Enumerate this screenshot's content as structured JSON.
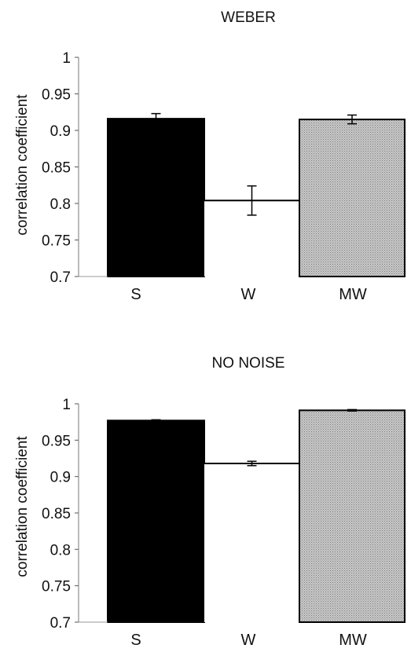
{
  "chart_data": [
    {
      "type": "bar",
      "title": "WEBER",
      "ylabel": "correlation coefficient",
      "xlabel": "",
      "categories": [
        "S",
        "W",
        "MW"
      ],
      "values": [
        0.916,
        0.804,
        0.915
      ],
      "errors": [
        0.007,
        0.02,
        0.006
      ],
      "ylim": [
        0.7,
        1.0
      ],
      "yticks": [
        "0.7",
        "0.75",
        "0.8",
        "0.85",
        "0.9",
        "0.95",
        "1"
      ],
      "yticks_values": [
        0.7,
        0.75,
        0.8,
        0.85,
        0.9,
        0.95,
        1.0
      ],
      "bar_fills": [
        "black",
        "white",
        "gray-stipple"
      ],
      "grid": false
    },
    {
      "type": "bar",
      "title": "NO NOISE",
      "ylabel": "correlation coefficient",
      "xlabel": "",
      "categories": [
        "S",
        "W",
        "MW"
      ],
      "values": [
        0.977,
        0.918,
        0.991
      ],
      "errors": [
        0.001,
        0.003,
        0.001
      ],
      "ylim": [
        0.7,
        1.0
      ],
      "yticks": [
        "0.7",
        "0.75",
        "0.8",
        "0.85",
        "0.9",
        "0.95",
        "1"
      ],
      "yticks_values": [
        0.7,
        0.75,
        0.8,
        0.85,
        0.9,
        0.95,
        1.0
      ],
      "bar_fills": [
        "black",
        "white",
        "gray-stipple"
      ],
      "grid": false
    }
  ],
  "colors": {
    "solid": "#000000",
    "open": "#ffffff",
    "stipple_base": "#c9c9c9",
    "stipple_dot": "#7d7d7d"
  }
}
